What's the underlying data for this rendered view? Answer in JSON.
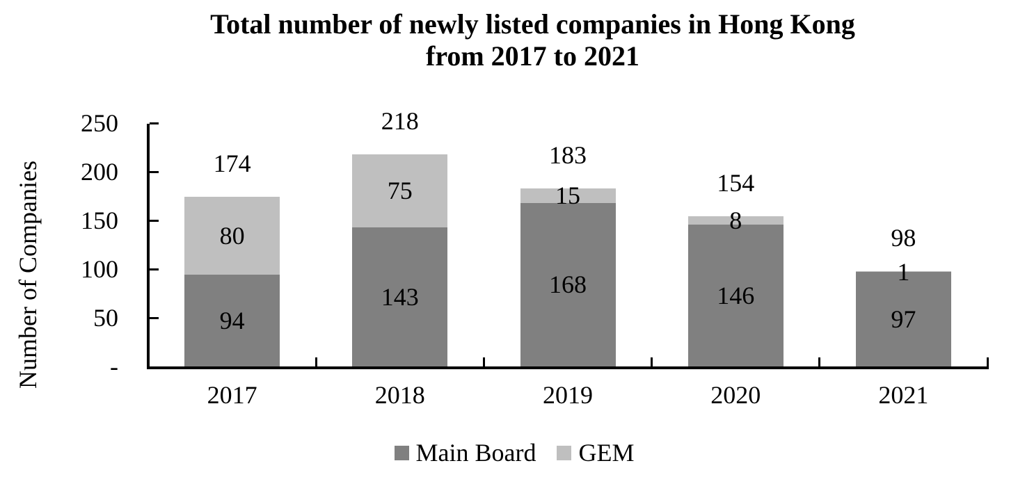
{
  "title": {
    "line1": "Total number of newly listed companies in Hong Kong",
    "line2": "from 2017 to 2021"
  },
  "y_axis": {
    "label": "Number of Companies",
    "tick_labels": [
      "-",
      "50",
      "100",
      "150",
      "200",
      "250"
    ],
    "tick_values": [
      0,
      50,
      100,
      150,
      200,
      250
    ]
  },
  "x_axis": {
    "categories": [
      "2017",
      "2018",
      "2019",
      "2020",
      "2021"
    ]
  },
  "legend": {
    "items": [
      {
        "label": "Main Board",
        "color": "#808080"
      },
      {
        "label": "GEM",
        "color": "#bfbfbf"
      }
    ]
  },
  "colors": {
    "main_board": "#808080",
    "gem": "#bfbfbf",
    "axis": "#000000",
    "text": "#000000",
    "background": "#ffffff"
  },
  "chart_data": {
    "type": "bar",
    "stacked": true,
    "title": "Total number of newly listed companies in Hong Kong from 2017 to 2021",
    "categories": [
      "2017",
      "2018",
      "2019",
      "2020",
      "2021"
    ],
    "series": [
      {
        "name": "Main Board",
        "color": "#808080",
        "values": [
          94,
          143,
          168,
          146,
          97
        ]
      },
      {
        "name": "GEM",
        "color": "#bfbfbf",
        "values": [
          80,
          75,
          15,
          8,
          1
        ]
      }
    ],
    "totals": [
      174,
      218,
      183,
      154,
      98
    ],
    "xlabel": "",
    "ylabel": "Number of Companies",
    "ylim": [
      0,
      250
    ],
    "y_tick_step": 50,
    "grid": false,
    "legend_position": "bottom",
    "data_labels": true
  }
}
